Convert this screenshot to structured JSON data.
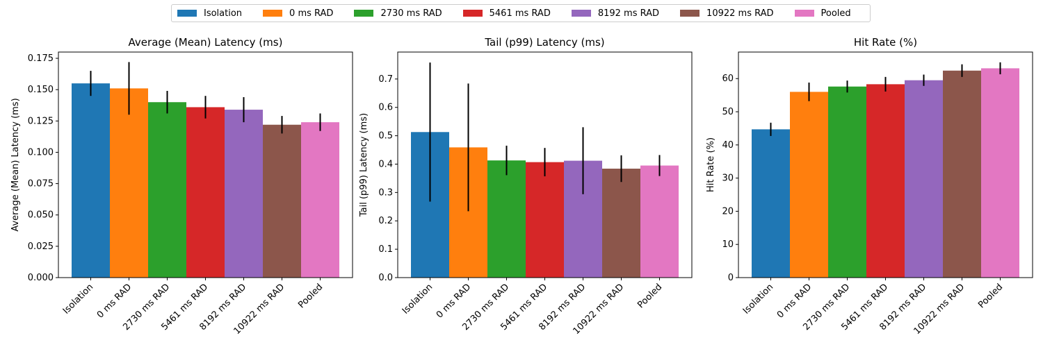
{
  "legend": {
    "placement": "top-center",
    "items": [
      {
        "label": "Isolation",
        "color": "#1f77b4"
      },
      {
        "label": "0 ms RAD",
        "color": "#ff7f0e"
      },
      {
        "label": "2730 ms RAD",
        "color": "#2ca02c"
      },
      {
        "label": "5461 ms RAD",
        "color": "#d62728"
      },
      {
        "label": "8192 ms RAD",
        "color": "#9467bd"
      },
      {
        "label": "10922 ms RAD",
        "color": "#8c564b"
      },
      {
        "label": "Pooled",
        "color": "#e377c2"
      }
    ]
  },
  "chart_data": [
    {
      "type": "bar",
      "title": "Average (Mean) Latency (ms)",
      "xlabel": "",
      "ylabel": "Average (Mean) Latency (ms)",
      "categories": [
        "Isolation",
        "0 ms RAD",
        "2730 ms RAD",
        "5461 ms RAD",
        "8192 ms RAD",
        "10922 ms RAD",
        "Pooled"
      ],
      "values": [
        0.155,
        0.151,
        0.14,
        0.136,
        0.134,
        0.122,
        0.124
      ],
      "errors": [
        0.01,
        0.021,
        0.009,
        0.009,
        0.01,
        0.007,
        0.007
      ],
      "ylim": [
        0,
        0.18
      ],
      "yticks": [
        0.0,
        0.025,
        0.05,
        0.075,
        0.1,
        0.125,
        0.15,
        0.175
      ],
      "ytick_labels": [
        "0.000",
        "0.025",
        "0.050",
        "0.075",
        "0.100",
        "0.125",
        "0.150",
        "0.175"
      ],
      "grid": false
    },
    {
      "type": "bar",
      "title": "Tail (p99) Latency (ms)",
      "xlabel": "",
      "ylabel": "Tail (p99) Latency (ms)",
      "categories": [
        "Isolation",
        "0 ms RAD",
        "2730 ms RAD",
        "5461 ms RAD",
        "8192 ms RAD",
        "10922 ms RAD",
        "Pooled"
      ],
      "values": [
        0.513,
        0.459,
        0.413,
        0.407,
        0.412,
        0.384,
        0.395
      ],
      "errors": [
        0.245,
        0.225,
        0.052,
        0.05,
        0.118,
        0.047,
        0.037
      ],
      "ylim": [
        0,
        0.795
      ],
      "yticks": [
        0.0,
        0.1,
        0.2,
        0.3,
        0.4,
        0.5,
        0.6,
        0.7
      ],
      "ytick_labels": [
        "0.0",
        "0.1",
        "0.2",
        "0.3",
        "0.4",
        "0.5",
        "0.6",
        "0.7"
      ],
      "grid": false
    },
    {
      "type": "bar",
      "title": "Hit Rate (%)",
      "xlabel": "",
      "ylabel": "Hit Rate (%)",
      "categories": [
        "Isolation",
        "0 ms RAD",
        "2730 ms RAD",
        "5461 ms RAD",
        "8192 ms RAD",
        "10922 ms RAD",
        "Pooled"
      ],
      "values": [
        44.7,
        56.0,
        57.6,
        58.3,
        59.5,
        62.4,
        63.1
      ],
      "errors": [
        2.0,
        2.8,
        1.8,
        2.2,
        1.7,
        1.9,
        1.8
      ],
      "ylim": [
        0,
        68
      ],
      "yticks": [
        0,
        10,
        20,
        30,
        40,
        50,
        60
      ],
      "ytick_labels": [
        "0",
        "10",
        "20",
        "30",
        "40",
        "50",
        "60"
      ],
      "grid": false
    }
  ]
}
